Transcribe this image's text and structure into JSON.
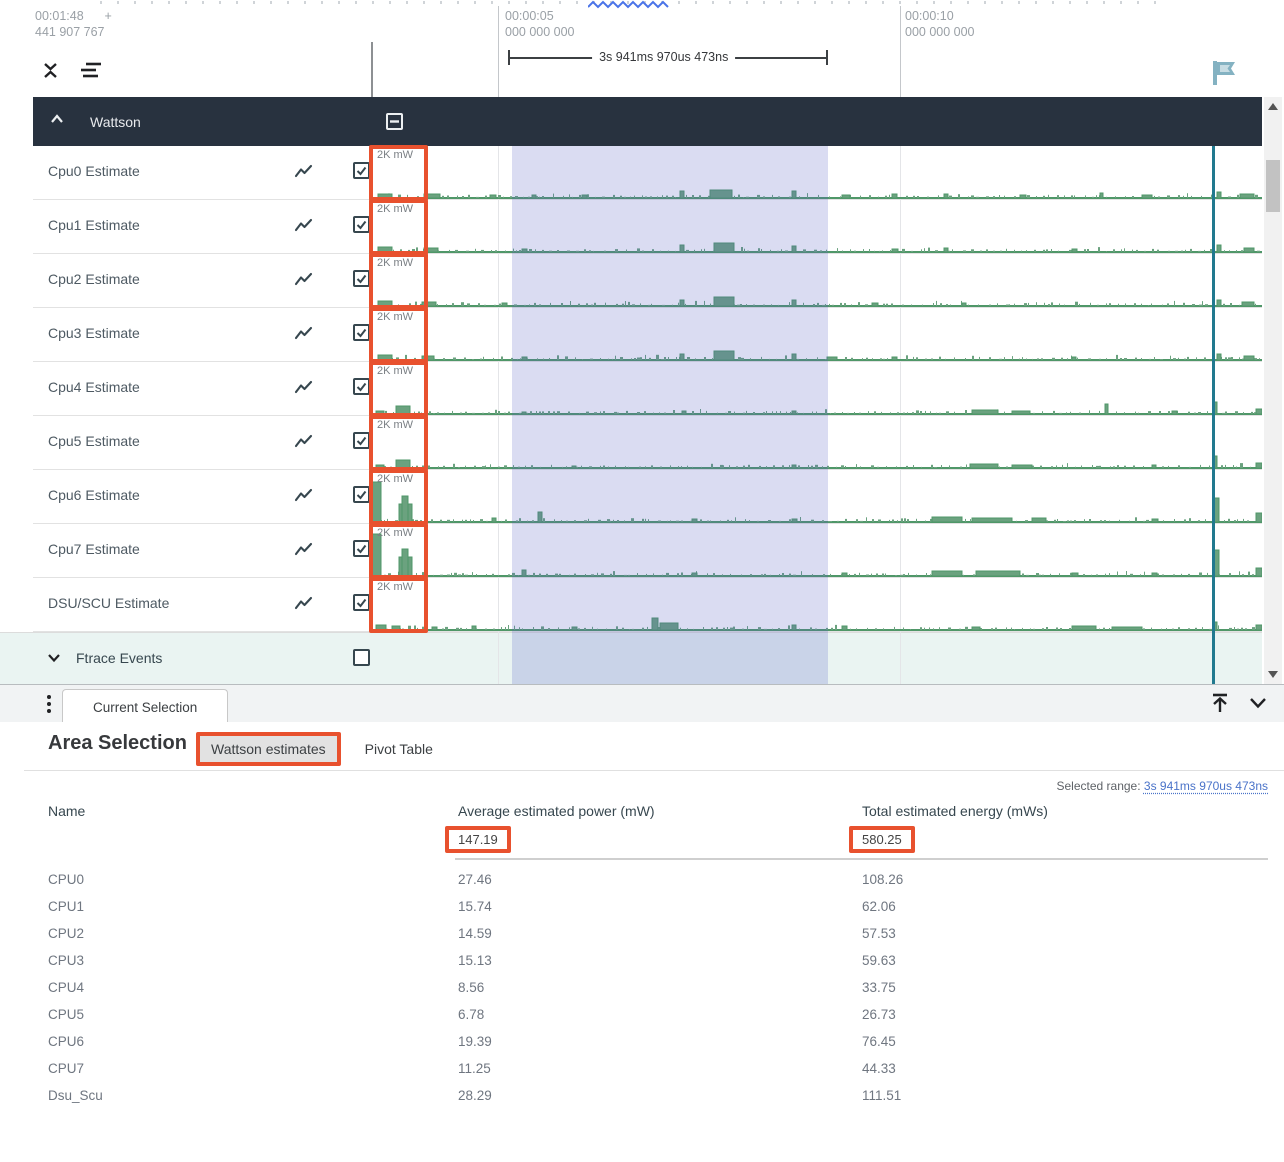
{
  "ruler": {
    "left_time": "00:01:48",
    "left_plus": "+",
    "left_ns": "441 907 767",
    "mid_time": "00:00:05",
    "mid_ns": "000 000 000",
    "right_time": "00:00:10",
    "right_ns": "000 000 000",
    "span_label": "3s 941ms 970us 473ns"
  },
  "tracks": {
    "group_label": "Wattson",
    "scale_label": "2K mW",
    "ftrace_label": "Ftrace Events",
    "rows": [
      {
        "label": "Cpu0 Estimate",
        "spikes": [
          [
            6,
            14,
            4
          ],
          [
            52,
            16,
            4
          ],
          [
            118,
            6,
            3
          ],
          [
            160,
            4,
            3
          ],
          [
            210,
            5,
            3
          ],
          [
            308,
            4,
            7
          ],
          [
            338,
            22,
            8
          ],
          [
            420,
            4,
            7
          ],
          [
            470,
            8,
            3
          ],
          [
            520,
            5,
            4
          ],
          [
            572,
            4,
            4
          ],
          [
            648,
            6,
            3
          ],
          [
            728,
            3,
            5
          ],
          [
            770,
            10,
            3
          ],
          [
            845,
            4,
            6
          ],
          [
            868,
            14,
            4
          ]
        ]
      },
      {
        "label": "Cpu1 Estimate",
        "spikes": [
          [
            6,
            14,
            5
          ],
          [
            52,
            14,
            4
          ],
          [
            150,
            5,
            3
          ],
          [
            308,
            4,
            7
          ],
          [
            342,
            20,
            9
          ],
          [
            420,
            4,
            6
          ],
          [
            520,
            6,
            3
          ],
          [
            572,
            4,
            4
          ],
          [
            700,
            5,
            3
          ],
          [
            845,
            4,
            7
          ],
          [
            872,
            10,
            4
          ]
        ]
      },
      {
        "label": "Cpu2 Estimate",
        "spikes": [
          [
            6,
            14,
            5
          ],
          [
            50,
            14,
            4
          ],
          [
            130,
            5,
            3
          ],
          [
            308,
            4,
            6
          ],
          [
            342,
            20,
            9
          ],
          [
            420,
            4,
            6
          ],
          [
            500,
            6,
            3
          ],
          [
            590,
            4,
            3
          ],
          [
            845,
            4,
            6
          ],
          [
            870,
            12,
            4
          ]
        ]
      },
      {
        "label": "Cpu3 Estimate",
        "spikes": [
          [
            6,
            14,
            5
          ],
          [
            50,
            12,
            4
          ],
          [
            150,
            5,
            3
          ],
          [
            308,
            4,
            6
          ],
          [
            342,
            20,
            9
          ],
          [
            420,
            4,
            6
          ],
          [
            455,
            10,
            3
          ],
          [
            520,
            5,
            3
          ],
          [
            700,
            4,
            3
          ],
          [
            845,
            4,
            6
          ],
          [
            872,
            10,
            4
          ]
        ]
      },
      {
        "label": "Cpu4 Estimate",
        "spikes": [
          [
            4,
            8,
            3
          ],
          [
            24,
            14,
            8
          ],
          [
            150,
            4,
            2
          ],
          [
            310,
            4,
            3
          ],
          [
            420,
            4,
            3
          ],
          [
            600,
            26,
            4
          ],
          [
            640,
            18,
            3
          ],
          [
            733,
            3,
            10
          ],
          [
            800,
            5,
            3
          ],
          [
            841,
            4,
            12
          ],
          [
            884,
            6,
            5
          ]
        ]
      },
      {
        "label": "Cpu5 Estimate",
        "spikes": [
          [
            4,
            8,
            3
          ],
          [
            24,
            14,
            8
          ],
          [
            200,
            4,
            2
          ],
          [
            420,
            4,
            3
          ],
          [
            598,
            28,
            4
          ],
          [
            640,
            20,
            3
          ],
          [
            780,
            4,
            3
          ],
          [
            841,
            4,
            12
          ],
          [
            884,
            6,
            5
          ]
        ]
      },
      {
        "label": "Cpu6 Estimate",
        "spikes": [
          [
            0,
            9,
            40
          ],
          [
            27,
            13,
            18
          ],
          [
            30,
            6,
            26
          ],
          [
            120,
            4,
            4
          ],
          [
            166,
            4,
            10
          ],
          [
            320,
            5,
            3
          ],
          [
            420,
            5,
            3
          ],
          [
            560,
            30,
            5
          ],
          [
            600,
            40,
            4
          ],
          [
            660,
            14,
            4
          ],
          [
            780,
            6,
            3
          ],
          [
            841,
            6,
            24
          ],
          [
            884,
            6,
            9
          ]
        ]
      },
      {
        "label": "Cpu7 Estimate",
        "spikes": [
          [
            0,
            9,
            42
          ],
          [
            27,
            13,
            19
          ],
          [
            30,
            6,
            27
          ],
          [
            150,
            4,
            6
          ],
          [
            320,
            5,
            3
          ],
          [
            470,
            5,
            3
          ],
          [
            560,
            30,
            5
          ],
          [
            604,
            44,
            5
          ],
          [
            700,
            6,
            3
          ],
          [
            780,
            5,
            3
          ],
          [
            841,
            6,
            26
          ],
          [
            884,
            6,
            8
          ]
        ]
      },
      {
        "label": "DSU/SCU Estimate",
        "spikes": [
          [
            4,
            10,
            5
          ],
          [
            20,
            8,
            4
          ],
          [
            60,
            5,
            3
          ],
          [
            100,
            4,
            4
          ],
          [
            200,
            5,
            3
          ],
          [
            280,
            6,
            12
          ],
          [
            288,
            18,
            7
          ],
          [
            420,
            4,
            5
          ],
          [
            470,
            5,
            4
          ],
          [
            600,
            8,
            3
          ],
          [
            700,
            24,
            4
          ],
          [
            740,
            30,
            3
          ],
          [
            841,
            4,
            8
          ],
          [
            884,
            6,
            5
          ]
        ]
      }
    ]
  },
  "tabstrip": {
    "current_tab": "Current Selection"
  },
  "panel": {
    "title": "Area Selection",
    "tabs": [
      {
        "label": "Wattson estimates",
        "active": true
      },
      {
        "label": "Pivot Table",
        "active": false
      }
    ],
    "selected_range_label": "Selected range:",
    "selected_range_value": "3s 941ms 970us 473ns",
    "table": {
      "columns": [
        "Name",
        "Average estimated power (mW)",
        "Total estimated energy (mWs)"
      ],
      "totals": {
        "power": "147.19",
        "energy": "580.25"
      },
      "rows": [
        [
          "CPU0",
          "27.46",
          "108.26"
        ],
        [
          "CPU1",
          "15.74",
          "62.06"
        ],
        [
          "CPU2",
          "14.59",
          "57.53"
        ],
        [
          "CPU3",
          "15.13",
          "59.63"
        ],
        [
          "CPU4",
          "8.56",
          "33.75"
        ],
        [
          "CPU5",
          "6.78",
          "26.73"
        ],
        [
          "CPU6",
          "19.39",
          "76.45"
        ],
        [
          "CPU7",
          "11.25",
          "44.33"
        ],
        [
          "Dsu_Scu",
          "28.29",
          "111.51"
        ]
      ]
    }
  },
  "icons": {
    "collapse": "unfold-less-icon",
    "flatten": "flatten-tracks-icon",
    "flag": "flag-icon",
    "chart": "line-chart-icon",
    "kebab": "more-options-icon"
  },
  "colors": {
    "annotation_orange": "#e8512e",
    "group_header_bg": "#28323f",
    "wave_fill": "#6ba27f",
    "wave_stroke": "#4f9768",
    "selection_overlay": "rgba(86,95,195,0.22)",
    "selection_line_teal": "#21798f",
    "ftrace_row_bg": "#eaf4f2",
    "link_blue": "#4a73c9",
    "squiggle_blue": "#4a73e8"
  }
}
